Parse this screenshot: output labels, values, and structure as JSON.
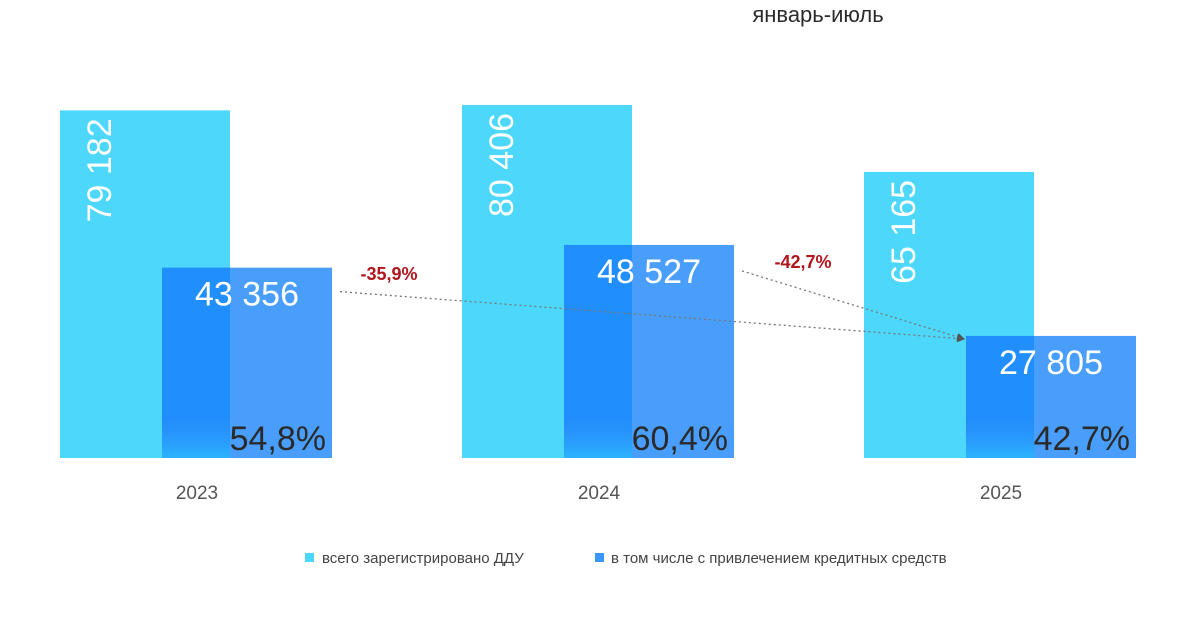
{
  "chart_data": {
    "type": "bar",
    "subtitle": "январь-июль",
    "categories": [
      "2023",
      "2024",
      "2025"
    ],
    "series": [
      {
        "name": "всего зарегистрировано ДДУ",
        "color": "#4dd8fb",
        "values": [
          79182,
          80406,
          65165
        ],
        "value_labels": [
          "79 182",
          "80 406",
          "65 165"
        ]
      },
      {
        "name": "в том числе с привлечением кредитных средств",
        "color": "#3a96fc",
        "values": [
          43356,
          48527,
          27805
        ],
        "value_labels": [
          "43 356",
          "48 527",
          "27 805"
        ],
        "share_labels": [
          "54,8%",
          "60,4%",
          "42,7%"
        ]
      }
    ],
    "changes": [
      {
        "from": "2023",
        "to": "2025",
        "label": "-35,9%"
      },
      {
        "from": "2024",
        "to": "2025",
        "label": "-42,7%"
      }
    ],
    "ylim": [
      0,
      82000
    ],
    "legend_position": "bottom"
  }
}
